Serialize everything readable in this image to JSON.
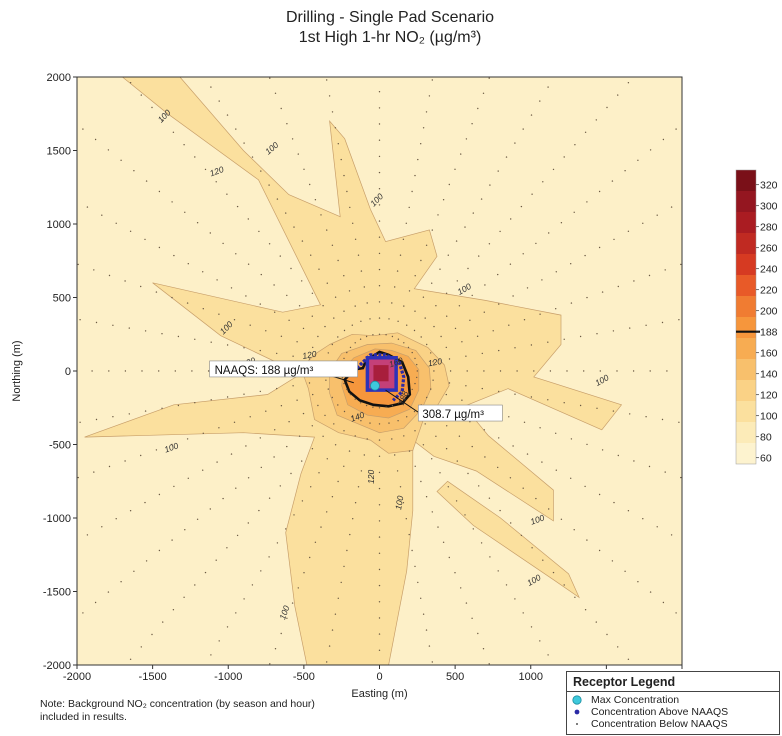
{
  "chart_data": {
    "type": "heatmap",
    "title": "Drilling - Single Pad Scenario",
    "subtitle": "1st High 1-hr NO₂ (µg/m³)",
    "xlabel": "Easting (m)",
    "ylabel": "Northing (m)",
    "xlim": [
      -2000,
      2000
    ],
    "ylim": [
      -2000,
      2000
    ],
    "x_ticks": [
      "-2000",
      "-1500",
      "-1000",
      "-500",
      "0",
      "500",
      "1000",
      "1500",
      "2000"
    ],
    "y_ticks": [
      "2000",
      "1500",
      "1000",
      "500",
      "0",
      "-500",
      "-1000",
      "-1500",
      "-2000"
    ],
    "colorbar": {
      "labels": [
        "320",
        "300",
        "280",
        "260",
        "240",
        "220",
        "200",
        "188",
        "160",
        "140",
        "120",
        "100",
        "80",
        "60"
      ],
      "colors": [
        "#7a1018",
        "#941620",
        "#aa1c22",
        "#c02a22",
        "#d63a22",
        "#e85a28",
        "#f07c32",
        "#f6963c",
        "#f7ac52",
        "#f8c06c",
        "#fad286",
        "#fbe09e",
        "#fcebb8",
        "#fdf3cf"
      ]
    },
    "contour_labels": [
      {
        "text": "100",
        "x": -1410,
        "y": 1720
      },
      {
        "text": "120",
        "x": -1070,
        "y": 1340
      },
      {
        "text": "100",
        "x": -700,
        "y": 1500
      },
      {
        "text": "100",
        "x": -5,
        "y": 1150
      },
      {
        "text": "100",
        "x": 570,
        "y": 540
      },
      {
        "text": "100",
        "x": -1000,
        "y": 280
      },
      {
        "text": "120",
        "x": -460,
        "y": 90
      },
      {
        "text": "160",
        "x": 115,
        "y": 40
      },
      {
        "text": "120",
        "x": 370,
        "y": 40
      },
      {
        "text": "100",
        "x": 1480,
        "y": -80
      },
      {
        "text": "120",
        "x": -860,
        "y": 40
      },
      {
        "text": "140",
        "x": -140,
        "y": -330
      },
      {
        "text": "188",
        "x": 175,
        "y": -190
      },
      {
        "text": "100",
        "x": -1370,
        "y": -540
      },
      {
        "text": "120",
        "x": -35,
        "y": -720
      },
      {
        "text": "100",
        "x": 150,
        "y": -900
      },
      {
        "text": "100",
        "x": 1050,
        "y": -1030
      },
      {
        "text": "100",
        "x": 1030,
        "y": -1440
      },
      {
        "text": "100",
        "x": -610,
        "y": -1650
      }
    ],
    "annotations": [
      {
        "text": "NAAQS: 188 µg/m³",
        "x": -1110,
        "y": -20
      },
      {
        "text": "308.7 µg/m³",
        "x": 270,
        "y": -320
      }
    ],
    "max_concentration": {
      "value": "308.7 µg/m³",
      "x": -30,
      "y": -100
    }
  },
  "note": {
    "line1": "Note: Background NO₂ concentration (by season and hour)",
    "line2": "included in results."
  },
  "receptor_legend": {
    "title": "Receptor Legend",
    "items": [
      {
        "label": "Max Concentration",
        "color": "#3ec9dc"
      },
      {
        "label": "Concentration Above NAAQS",
        "color": "#2a2aa6"
      },
      {
        "label": "Concentration Below NAAQS",
        "color": "#555555"
      }
    ]
  }
}
